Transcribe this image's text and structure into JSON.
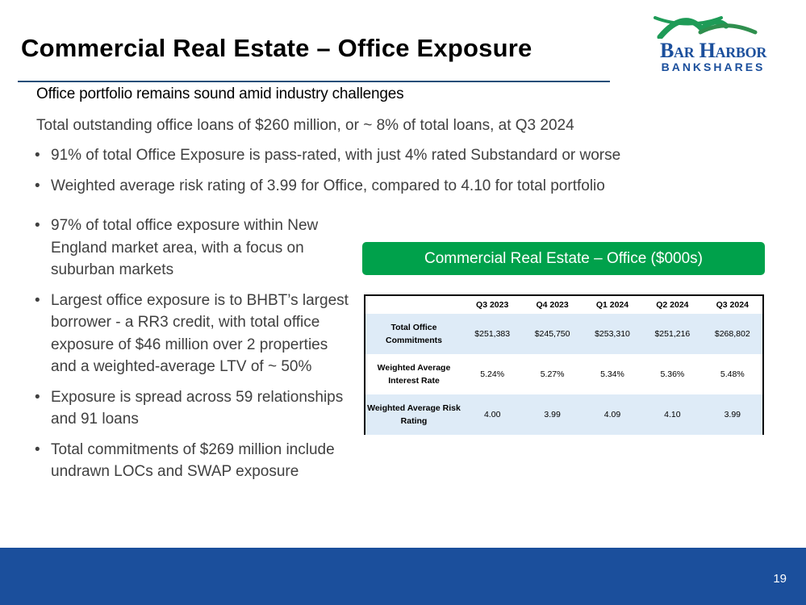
{
  "slide": {
    "title": "Commercial Real Estate – Office Exposure",
    "subtitle": "Office portfolio remains sound amid industry challenges",
    "intro": "Total outstanding office loans of $260 million, or ~ 8% of total loans, at Q3 2024",
    "top_bullets": [
      "91% of total Office Exposure is pass-rated, with just 4% rated Substandard or worse",
      "Weighted average risk rating of 3.99 for Office, compared to 4.10 for total portfolio"
    ],
    "left_bullets": [
      "97% of total office exposure within New England market area, with a focus on suburban markets",
      "Largest office exposure is to BHBT’s largest borrower - a RR3 credit, with total office exposure of $46 million over 2 properties and a weighted-average LTV of ~ 50%",
      "Exposure is spread across 59 relationships and 91 loans",
      "Total commitments of $269 million include undrawn LOCs and SWAP exposure"
    ],
    "page_number": "19"
  },
  "logo": {
    "line1": "Bar Harbor",
    "line2": "BANKSHARES"
  },
  "table": {
    "banner": "Commercial Real Estate – Office  ($000s)",
    "columns": [
      "Q3 2023",
      "Q4 2023",
      "Q1 2024",
      "Q2 2024",
      "Q3 2024"
    ],
    "rows": [
      {
        "label": "Total Office Commitments",
        "values": [
          "$251,383",
          "$245,750",
          "$253,310",
          "$251,216",
          "$268,802"
        ]
      },
      {
        "label": "Weighted Average Interest Rate",
        "values": [
          "5.24%",
          "5.27%",
          "5.34%",
          "5.36%",
          "5.48%"
        ]
      },
      {
        "label": "Weighted Average Risk Rating",
        "values": [
          "4.00",
          "3.99",
          "4.09",
          "4.10",
          "3.99"
        ]
      }
    ]
  },
  "colors": {
    "brand_blue": "#1b4f9c",
    "banner_green": "#00a14b",
    "row_shade": "#deebf7"
  }
}
